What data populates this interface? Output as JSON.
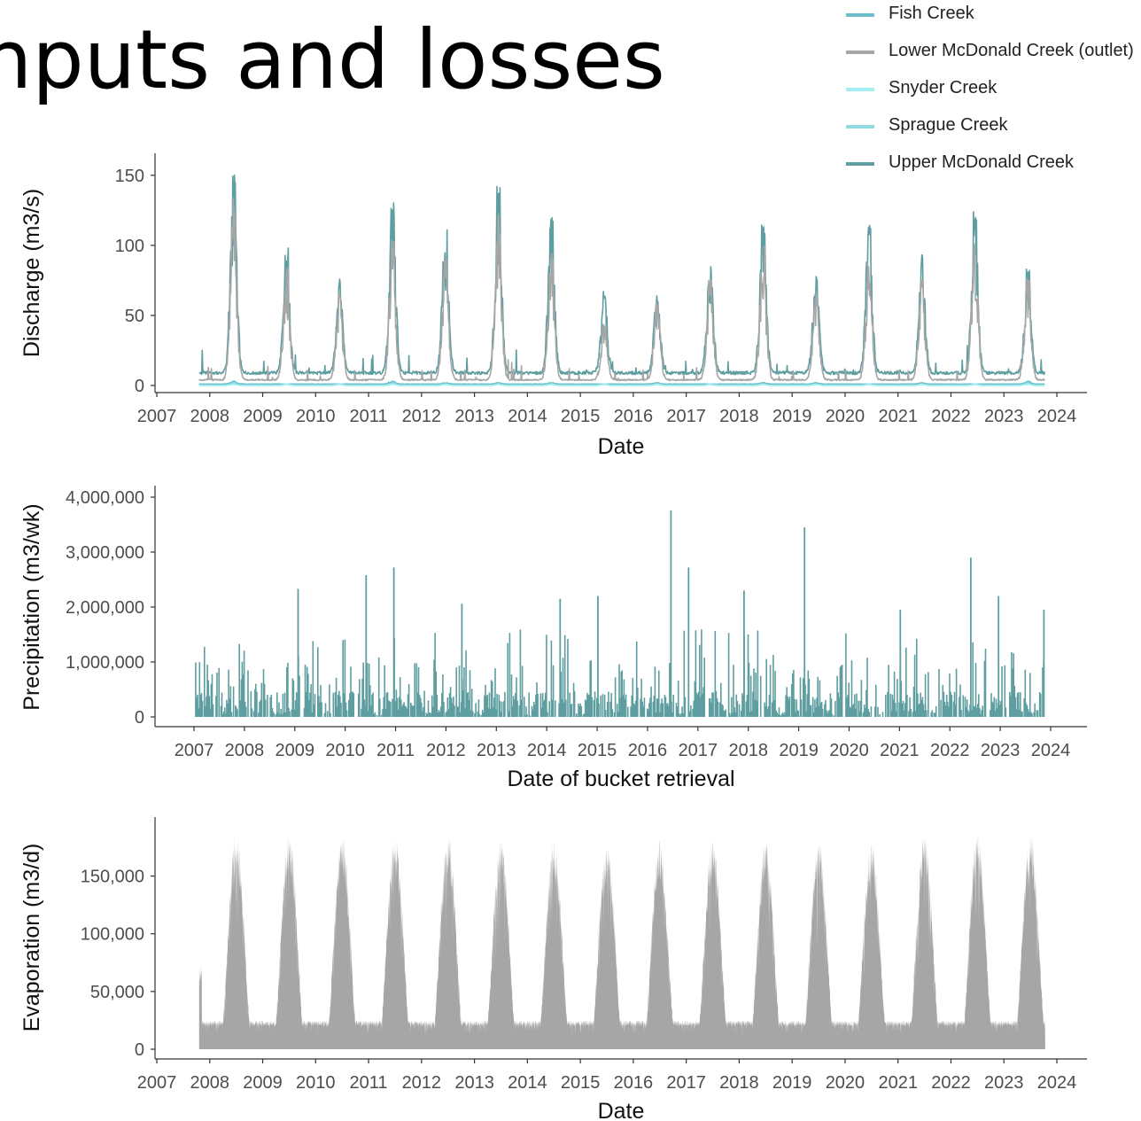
{
  "page": {
    "title_text": "nputs and losses"
  },
  "colors": {
    "fish_creek": "#6bbdc9",
    "lower_mcdonald": "#a6a6a6",
    "snyder": "#a3f0f2",
    "sprague": "#8fdbe6",
    "upper_mcdonald": "#5f9ea0",
    "precip_fill": "#5f9ea0",
    "evap_fill": "#a6a6a6",
    "axis": "#333333"
  },
  "chart_data": [
    {
      "type": "line",
      "title": "",
      "xlabel": "Date",
      "ylabel": "Discharge (m3/s)",
      "xlim": [
        2007,
        2024
      ],
      "ylim": [
        0,
        160
      ],
      "x_ticks": [
        "2007",
        "2008",
        "2009",
        "2010",
        "2011",
        "2012",
        "2013",
        "2014",
        "2015",
        "2016",
        "2017",
        "2018",
        "2019",
        "2020",
        "2021",
        "2022",
        "2023",
        "2024"
      ],
      "y_ticks": [
        {
          "value": 0,
          "label": "0"
        },
        {
          "value": 50,
          "label": "50"
        },
        {
          "value": 100,
          "label": "100"
        },
        {
          "value": 150,
          "label": "150"
        }
      ],
      "grid": false,
      "legend_position": "top-right",
      "legend": [
        "Fish Creek",
        "Lower McDonald Creek (outlet)",
        "Snyder Creek",
        "Sprague Creek",
        "Upper McDonald Creek"
      ],
      "date_range": [
        "2007-10",
        "2023-10"
      ],
      "series": [
        {
          "name": "Fish Creek",
          "baseline": 1,
          "peaks": [
            3,
            1,
            1,
            3,
            2,
            2,
            2,
            1,
            2,
            1,
            2,
            2,
            1,
            2,
            1,
            3
          ]
        },
        {
          "name": "Lower McDonald Creek (outlet)",
          "baseline": 4,
          "peaks": [
            135,
            88,
            67,
            105,
            95,
            125,
            95,
            45,
            60,
            78,
            100,
            68,
            90,
            75,
            105,
            78
          ]
        },
        {
          "name": "Snyder Creek",
          "baseline": 0,
          "peaks": [
            1,
            1,
            1,
            1,
            1,
            1,
            1,
            1,
            1,
            1,
            1,
            1,
            1,
            1,
            1,
            1
          ]
        },
        {
          "name": "Sprague Creek",
          "baseline": 0,
          "peaks": [
            2,
            1,
            1,
            2,
            1,
            1,
            1,
            1,
            1,
            1,
            1,
            1,
            1,
            1,
            1,
            2
          ]
        },
        {
          "name": "Upper McDonald Creek",
          "baseline": 9,
          "peaks": [
            159,
            100,
            77,
            131,
            117,
            149,
            120,
            68,
            68,
            93,
            118,
            83,
            118,
            95,
            128,
            87
          ]
        }
      ]
    },
    {
      "type": "bar",
      "title": "",
      "xlabel": "Date of bucket retrieval",
      "ylabel": "Precipitation (m3/wk)",
      "xlim": [
        2007,
        2024
      ],
      "ylim": [
        0,
        4000000
      ],
      "x_ticks": [
        "2007",
        "2008",
        "2009",
        "2010",
        "2011",
        "2012",
        "2013",
        "2014",
        "2015",
        "2016",
        "2017",
        "2018",
        "2019",
        "2020",
        "2021",
        "2022",
        "2023",
        "2024"
      ],
      "y_ticks": [
        {
          "value": 0,
          "label": "0"
        },
        {
          "value": 1000000,
          "label": "1,000,000"
        },
        {
          "value": 2000000,
          "label": "2,000,000"
        },
        {
          "value": 3000000,
          "label": "3,000,000"
        },
        {
          "value": 4000000,
          "label": "4,000,000"
        }
      ],
      "grid": false,
      "date_range": [
        "2007-01",
        "2023-11"
      ],
      "notable_peaks": [
        {
          "x": 2009.05,
          "y": 2330000
        },
        {
          "x": 2010.4,
          "y": 2580000
        },
        {
          "x": 2010.95,
          "y": 2720000
        },
        {
          "x": 2012.3,
          "y": 2060000
        },
        {
          "x": 2014.25,
          "y": 2150000
        },
        {
          "x": 2015.0,
          "y": 2200000
        },
        {
          "x": 2016.45,
          "y": 3760000
        },
        {
          "x": 2016.8,
          "y": 2720000
        },
        {
          "x": 2017.9,
          "y": 2300000
        },
        {
          "x": 2019.1,
          "y": 3450000
        },
        {
          "x": 2021.0,
          "y": 1950000
        },
        {
          "x": 2022.4,
          "y": 2900000
        },
        {
          "x": 2022.95,
          "y": 2200000
        },
        {
          "x": 2023.85,
          "y": 1950000
        }
      ]
    },
    {
      "type": "bar",
      "title": "",
      "xlabel": "Date",
      "ylabel": "Evaporation (m3/d)",
      "xlim": [
        2007,
        2024
      ],
      "ylim": [
        0,
        195000
      ],
      "x_ticks": [
        "2007",
        "2008",
        "2009",
        "2010",
        "2011",
        "2012",
        "2013",
        "2014",
        "2015",
        "2016",
        "2017",
        "2018",
        "2019",
        "2020",
        "2021",
        "2022",
        "2023",
        "2024"
      ],
      "y_ticks": [
        {
          "value": 0,
          "label": "0"
        },
        {
          "value": 50000,
          "label": "50,000"
        },
        {
          "value": 100000,
          "label": "100,000"
        },
        {
          "value": 150000,
          "label": "150,000"
        }
      ],
      "grid": false,
      "date_range": [
        "2007-10",
        "2023-10"
      ],
      "seasonal": {
        "annual_peak": [
          189000,
          189000,
          188000,
          186000,
          187000,
          184000,
          182000,
          180000,
          181000,
          184000,
          180000,
          181000,
          179000,
          187000,
          189000,
          188000
        ],
        "winter_min": 25000
      }
    }
  ]
}
